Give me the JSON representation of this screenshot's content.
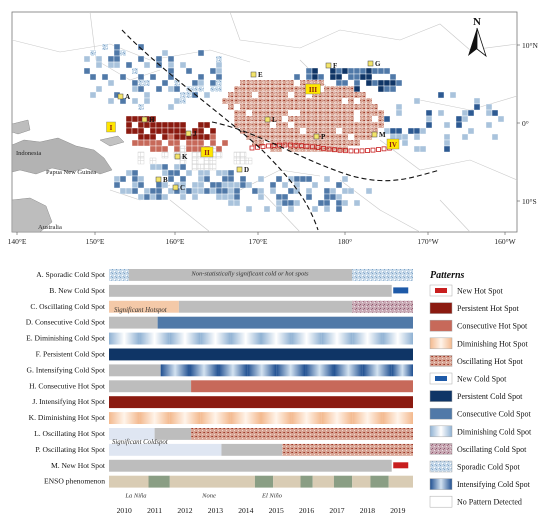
{
  "map": {
    "lon_labels": [
      "140°E",
      "150°E",
      "160°E",
      "170°E",
      "180°",
      "170°W",
      "160°W"
    ],
    "lat_labels": [
      "10°N",
      "0°",
      "10°S"
    ],
    "north_label": "N",
    "countries": [
      {
        "id": "indonesia",
        "label": "Indonesia"
      },
      {
        "id": "png",
        "label": "Papua New Guinea"
      },
      {
        "id": "australia",
        "label": "Australia"
      }
    ],
    "letter_markers": [
      "A",
      "B",
      "C",
      "D",
      "E",
      "F",
      "G",
      "H",
      "J",
      "K",
      "L",
      "M",
      "P"
    ],
    "roman_markers": [
      "I",
      "II",
      "III",
      "IV"
    ]
  },
  "timeline": {
    "rows": [
      {
        "id": "A",
        "label": "A. Sporadic Cold Spot"
      },
      {
        "id": "B",
        "label": "B. New Cold Spot"
      },
      {
        "id": "C",
        "label": "C. Oscillating Cold Spot"
      },
      {
        "id": "D",
        "label": "D. Consecutive Cold Spot"
      },
      {
        "id": "E",
        "label": "E. Diminishing Cold Spot"
      },
      {
        "id": "F",
        "label": "F. Persistent Cold Spot"
      },
      {
        "id": "G",
        "label": "G. Intensifying Cold Spot"
      },
      {
        "id": "H",
        "label": "H. Consecutive Hot Spot"
      },
      {
        "id": "J",
        "label": "J. Intensifying Hot Spot"
      },
      {
        "id": "K",
        "label": "K. Diminishing Hot Spot"
      },
      {
        "id": "L",
        "label": "L. Oscillating Hot Spot"
      },
      {
        "id": "P",
        "label": "P. Oscillating Hot Spot"
      },
      {
        "id": "M",
        "label": "M. New Hot Spot"
      },
      {
        "id": "ENSO",
        "label": "ENSO phenomenon"
      }
    ],
    "years": [
      "2010",
      "2011",
      "2012",
      "2013",
      "2014",
      "2015",
      "2016",
      "2017",
      "2018",
      "2019"
    ],
    "annotations": {
      "non_significant": "Non-statistically significant cold or hot spots",
      "significant_hotspot": "Significant Hotspot",
      "significant_coldspot": "Significant Coldspot",
      "la_nina": "La Niña",
      "none": "None",
      "el_nino": "El Niño"
    }
  },
  "legend": {
    "title": "Patterns",
    "items": [
      {
        "label": "New Hot Spot",
        "color": "#c81e1e"
      },
      {
        "label": "Persistent Hot Spot",
        "color": "#8b1a10"
      },
      {
        "label": "Consecutive Hot Spot",
        "color": "#c7695a"
      },
      {
        "label": "Diminishing Hot Spot",
        "color": "#f4c9a8"
      },
      {
        "label": "Oscillating Hot Spot",
        "color": "#d9a08f"
      },
      {
        "label": "New Cold Spot",
        "color": "#1e5aa8"
      },
      {
        "label": "Persistent Cold Spot",
        "color": "#0f3566"
      },
      {
        "label": "Consecutive Cold Spot",
        "color": "#5079a8"
      },
      {
        "label": "Diminishing Cold Spot",
        "color": "#c6d8e8"
      },
      {
        "label": "Oscillating Cold Spot",
        "color": "#c7a8b4"
      },
      {
        "label": "Sporadic Cold Spot",
        "color": "#a9c3dc"
      },
      {
        "label": "Intensifying Cold Spot",
        "color": "#3b6db3"
      },
      {
        "label": "No Pattern Detected",
        "color": "#ffffff"
      }
    ]
  }
}
